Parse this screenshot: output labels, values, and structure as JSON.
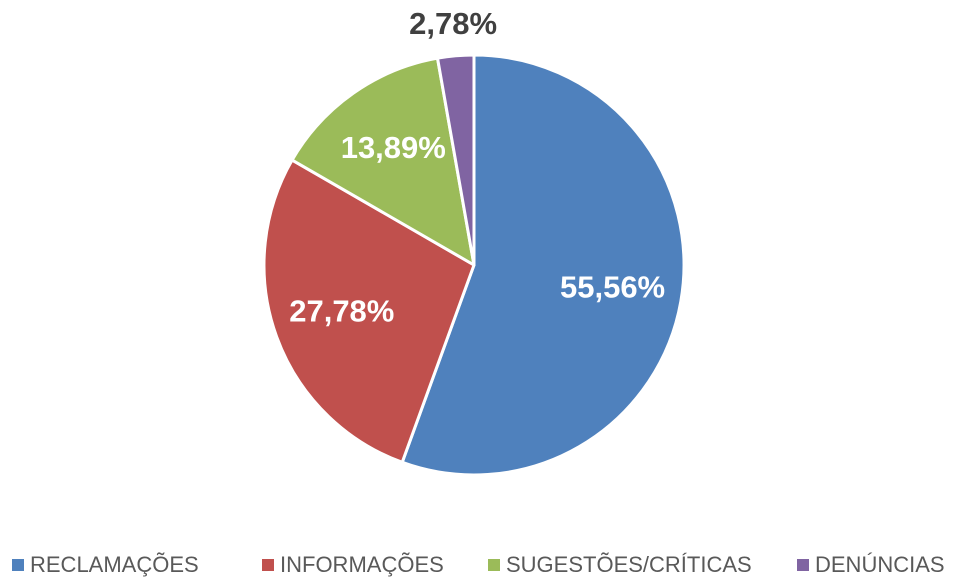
{
  "chart_data": {
    "type": "pie",
    "categories": [
      "RECLAMAÇÕES",
      "INFORMAÇÕES",
      "SUGESTÕES/CRÍTICAS",
      "DENÚNCIAS"
    ],
    "values": [
      55.56,
      27.78,
      13.89,
      2.78
    ],
    "value_labels": [
      "55,56%",
      "27,78%",
      "13,89%",
      "2,78%"
    ],
    "colors": [
      "#4f81bd",
      "#c0504d",
      "#9bbb59",
      "#8064a2"
    ],
    "legend": "bottom"
  }
}
